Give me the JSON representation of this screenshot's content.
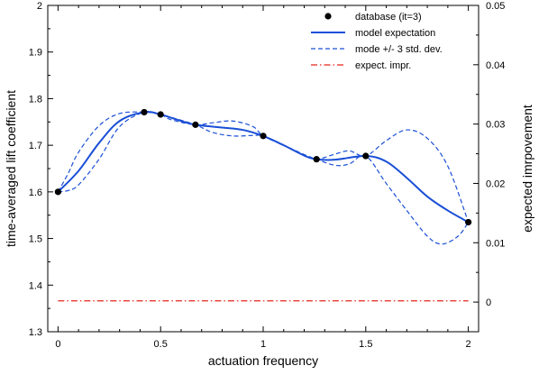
{
  "chart_data": {
    "type": "line",
    "xlabel": "actuation frequency",
    "ylabel": "time-averaged lift coefficient",
    "y2label": "expected imrpovement",
    "xlim": [
      -0.05,
      2.05
    ],
    "ylim": [
      1.3,
      2.0
    ],
    "y2lim": [
      -0.005,
      0.05
    ],
    "x_ticks": [
      0,
      0.5,
      1,
      1.5,
      2
    ],
    "x_tick_labels": [
      "0",
      "0.5",
      "1",
      "1.5",
      "2"
    ],
    "y_ticks": [
      1.3,
      1.4,
      1.5,
      1.6,
      1.7,
      1.8,
      1.9,
      2.0
    ],
    "y_tick_labels": [
      "1.3",
      "1.4",
      "1.5",
      "1.6",
      "1.7",
      "1.8",
      "1.9",
      "2"
    ],
    "y2_ticks": [
      0,
      0.01,
      0.02,
      0.03,
      0.04,
      0.05
    ],
    "y2_tick_labels": [
      "0",
      "0.01",
      "0.02",
      "0.03",
      "0.04",
      "0.05"
    ],
    "legend_placement": "top-right",
    "grid": false,
    "series": [
      {
        "name": "database (it=3)",
        "kind": "scatter",
        "axis": "left",
        "color": "#000000",
        "x": [
          0,
          0.42,
          0.5,
          0.67,
          1.0,
          1.26,
          1.5,
          2.0
        ],
        "y": [
          1.6,
          1.771,
          1.766,
          1.744,
          1.72,
          1.67,
          1.677,
          1.535
        ]
      },
      {
        "name": "model expectation",
        "kind": "line",
        "axis": "left",
        "color": "#1a4fd6",
        "style": "solid",
        "x": [
          0,
          0.1,
          0.2,
          0.3,
          0.42,
          0.5,
          0.6,
          0.67,
          0.8,
          0.9,
          1.0,
          1.1,
          1.2,
          1.26,
          1.35,
          1.5,
          1.6,
          1.7,
          1.8,
          1.9,
          2.0
        ],
        "y": [
          1.6,
          1.645,
          1.705,
          1.752,
          1.771,
          1.766,
          1.752,
          1.744,
          1.738,
          1.733,
          1.72,
          1.7,
          1.678,
          1.67,
          1.669,
          1.677,
          1.665,
          1.63,
          1.59,
          1.56,
          1.535
        ]
      },
      {
        "name": "mode +/- 3 std. dev.",
        "kind": "line",
        "axis": "left",
        "color": "#1a4fd6",
        "style": "dashed",
        "x": [
          0,
          0.05,
          0.1,
          0.2,
          0.3,
          0.42,
          0.5,
          0.55,
          0.67,
          0.75,
          0.85,
          0.95,
          1.0,
          1.1,
          1.2,
          1.26,
          1.35,
          1.42,
          1.5,
          1.6,
          1.7,
          1.8,
          1.9,
          2.0
        ],
        "y": [
          1.6,
          1.64,
          1.685,
          1.742,
          1.768,
          1.771,
          1.766,
          1.755,
          1.744,
          1.748,
          1.752,
          1.74,
          1.72,
          1.7,
          1.68,
          1.67,
          1.681,
          1.688,
          1.677,
          1.71,
          1.733,
          1.715,
          1.655,
          1.535
        ]
      },
      {
        "name": "",
        "kind": "line",
        "axis": "left",
        "color": "#1a4fd6",
        "style": "dashed",
        "x": [
          0,
          0.05,
          0.1,
          0.2,
          0.3,
          0.42,
          0.5,
          0.55,
          0.67,
          0.75,
          0.85,
          0.95,
          1.0,
          1.1,
          1.2,
          1.26,
          1.35,
          1.42,
          1.5,
          1.6,
          1.7,
          1.8,
          1.87,
          1.95,
          2.0
        ],
        "y": [
          1.6,
          1.603,
          1.615,
          1.67,
          1.74,
          1.771,
          1.766,
          1.76,
          1.744,
          1.728,
          1.72,
          1.721,
          1.72,
          1.7,
          1.68,
          1.67,
          1.657,
          1.66,
          1.677,
          1.618,
          1.56,
          1.505,
          1.488,
          1.505,
          1.535
        ]
      },
      {
        "name": "expect. impr.",
        "kind": "line",
        "axis": "right",
        "color": "#e4261b",
        "style": "dashdot",
        "x": [
          0,
          0.5,
          1.0,
          1.5,
          2.0
        ],
        "y": [
          0.0002,
          0.0002,
          0.0002,
          0.0002,
          0.0002
        ]
      }
    ]
  }
}
